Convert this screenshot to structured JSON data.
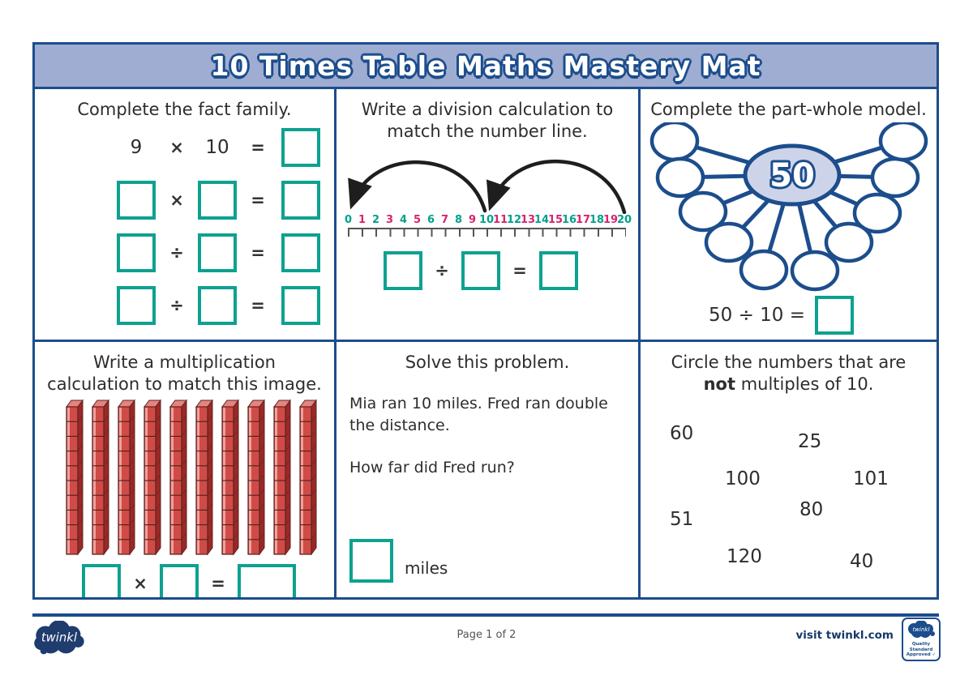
{
  "title": "10 Times Table Maths Mastery Mat",
  "cells": {
    "fact_family": {
      "heading": "Complete the fact family.",
      "equals": "=",
      "rows": [
        {
          "a": "9",
          "op": "×",
          "b": "10"
        },
        {
          "op": "×"
        },
        {
          "op": "÷"
        },
        {
          "op": "÷"
        }
      ]
    },
    "number_line": {
      "heading_line1": "Write a division calculation to",
      "heading_line2": "match the number line.",
      "labels": [
        "0",
        "1",
        "2",
        "3",
        "4",
        "5",
        "6",
        "7",
        "8",
        "9",
        "10",
        "11",
        "12",
        "13",
        "14",
        "15",
        "16",
        "17",
        "18",
        "19",
        "20"
      ],
      "op": "÷",
      "equals": "="
    },
    "part_whole": {
      "heading": "Complete the part-whole model.",
      "whole": "50",
      "equation": "50 ÷ 10 ="
    },
    "multiplication": {
      "heading_line1": "Write a multiplication",
      "heading_line2": "calculation to match this image.",
      "rod_count": 10,
      "op": "×",
      "equals": "="
    },
    "word_problem": {
      "heading": "Solve this problem.",
      "body": "Mia ran 10 miles. Fred ran double the distance.",
      "question": "How far did Fred run?",
      "unit": "miles"
    },
    "circle_numbers": {
      "heading_line1": "Circle the numbers that are",
      "heading_bold": "not",
      "heading_rest": " multiples of 10.",
      "numbers": [
        "60",
        "25",
        "100",
        "101",
        "80",
        "51",
        "120",
        "40"
      ]
    }
  },
  "footer": {
    "page": "Page 1 of 2",
    "visit": "visit twinkl.com",
    "logo_text": "twinkl",
    "badge_brand": "twinkl",
    "badge_line1": "Quality Standard",
    "badge_line2": "Approved"
  },
  "colors": {
    "navy": "#1c4d8c",
    "periwinkle": "#9fadd2",
    "teal": "#0da190",
    "number_teal": "#00a18e",
    "number_pink": "#d6256d",
    "rod_red": "#d04b47"
  }
}
